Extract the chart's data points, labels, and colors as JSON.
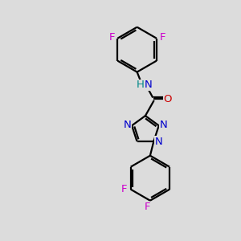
{
  "background_color": "#dcdcdc",
  "bond_color": "#000000",
  "N_color": "#0000cc",
  "O_color": "#cc0000",
  "F_color": "#cc00cc",
  "line_width": 1.6,
  "font_size": 9.5,
  "fig_width": 3.0,
  "fig_height": 3.0,
  "dpi": 100,
  "xlim": [
    0,
    8
  ],
  "ylim": [
    0,
    10
  ]
}
